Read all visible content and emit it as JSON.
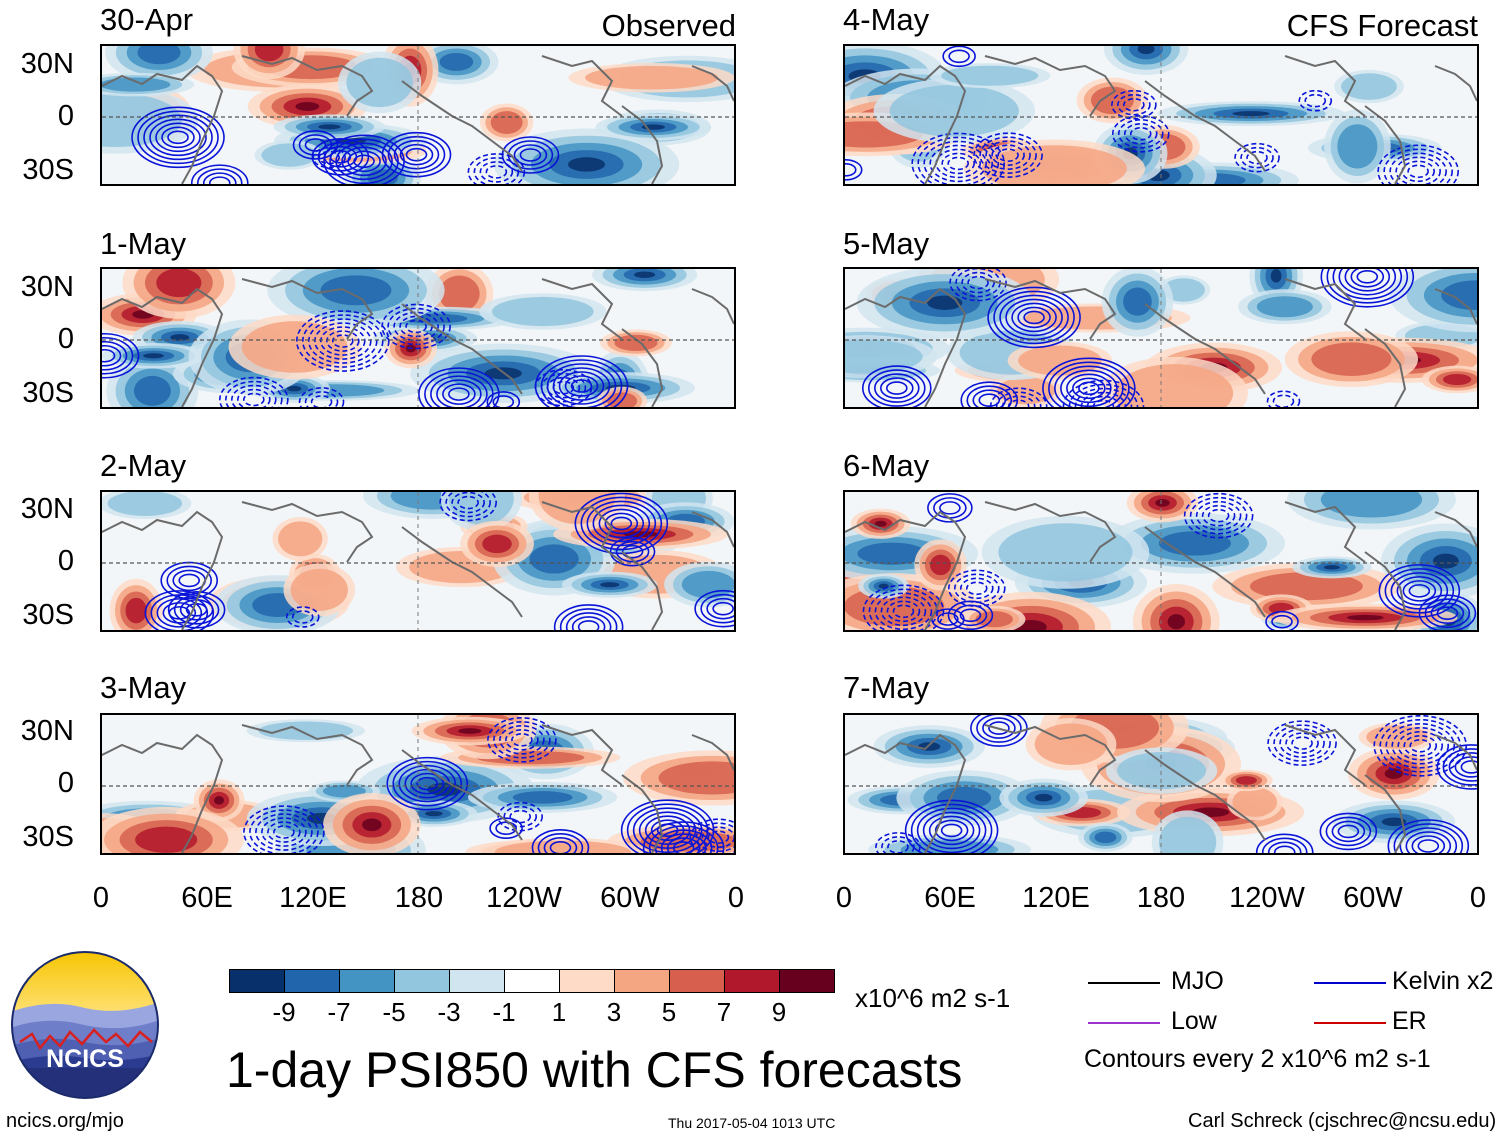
{
  "header": {
    "observed_label": "Observed",
    "forecast_label": "CFS Forecast"
  },
  "observed_panels": [
    {
      "date": "30-Apr"
    },
    {
      "date": "1-May"
    },
    {
      "date": "2-May"
    },
    {
      "date": "3-May"
    }
  ],
  "forecast_panels": [
    {
      "date": "4-May"
    },
    {
      "date": "5-May"
    },
    {
      "date": "6-May"
    },
    {
      "date": "7-May"
    }
  ],
  "lat_ticks": [
    "30N",
    "0",
    "30S"
  ],
  "lon_ticks": [
    "0",
    "60E",
    "120E",
    "180",
    "120W",
    "60W",
    "0"
  ],
  "colorbar": {
    "colors": [
      "#08306b",
      "#2166ac",
      "#4393c3",
      "#92c5de",
      "#d1e5f0",
      "#ffffff",
      "#fddbc7",
      "#f4a582",
      "#d6604d",
      "#b2182b",
      "#67001f"
    ],
    "ticks": [
      "-9",
      "-7",
      "-5",
      "-3",
      "-1",
      "1",
      "3",
      "5",
      "7",
      "9"
    ],
    "units": "x10^6 m2 s-1"
  },
  "title": "1-day PSI850 with CFS forecasts",
  "legend": {
    "items": [
      {
        "label": "MJO",
        "color": "#000000"
      },
      {
        "label": "Kelvin x2",
        "color": "#0000cc"
      },
      {
        "label": "Low",
        "color": "#9933cc"
      },
      {
        "label": "ER",
        "color": "#cc0000"
      }
    ],
    "note": "Contours every 2 x10^6 m2 s-1"
  },
  "footer": {
    "website": "ncics.org/mjo",
    "timestamp": "Thu 2017-05-04 1013 UTC",
    "credit": "Carl Schreck (cjschrec@ncsu.edu)"
  },
  "logo": {
    "text": "NCICS"
  }
}
